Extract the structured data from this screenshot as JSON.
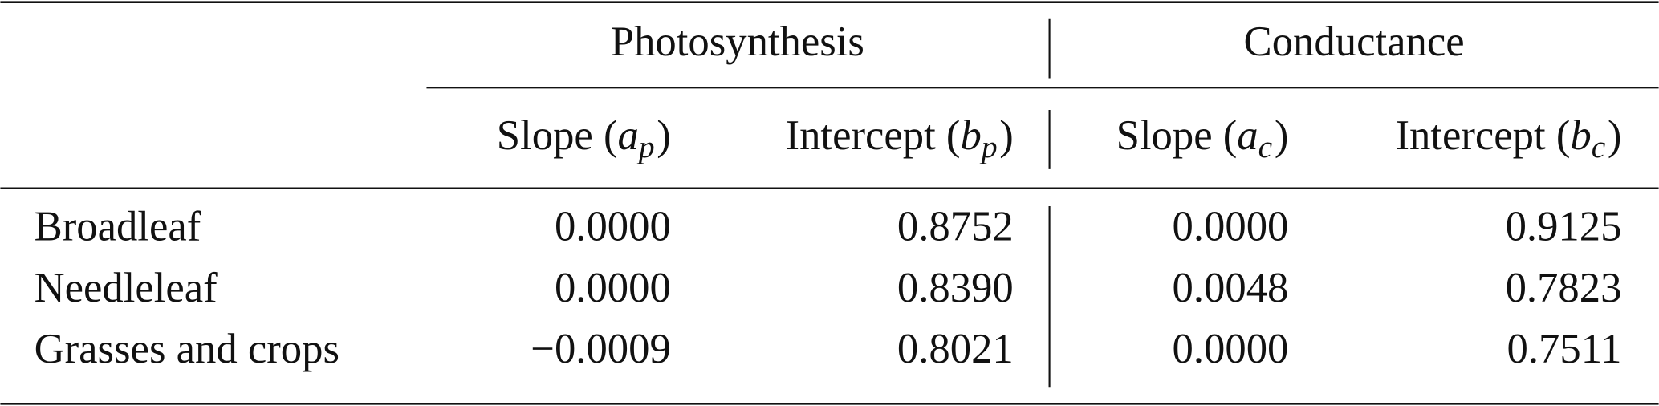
{
  "table": {
    "groups": [
      "Photosynthesis",
      "Conductance"
    ],
    "columns": [
      {
        "prefix": "Slope (",
        "symbol": "a",
        "sub": "p",
        "suffix": ")"
      },
      {
        "prefix": "Intercept (",
        "symbol": "b",
        "sub": "p",
        "suffix": ")"
      },
      {
        "prefix": "Slope (",
        "symbol": "a",
        "sub": "c",
        "suffix": ")"
      },
      {
        "prefix": "Intercept (",
        "symbol": "b",
        "sub": "c",
        "suffix": ")"
      }
    ],
    "rows": [
      [
        "Broadleaf",
        "0.0000",
        "0.8752",
        "0.0000",
        "0.9125"
      ],
      [
        "Needleleaf",
        "0.0000",
        "0.8390",
        "0.0048",
        "0.7823"
      ],
      [
        "Grasses and crops",
        "−0.0009",
        "0.8021",
        "0.0000",
        "0.7511"
      ]
    ]
  }
}
